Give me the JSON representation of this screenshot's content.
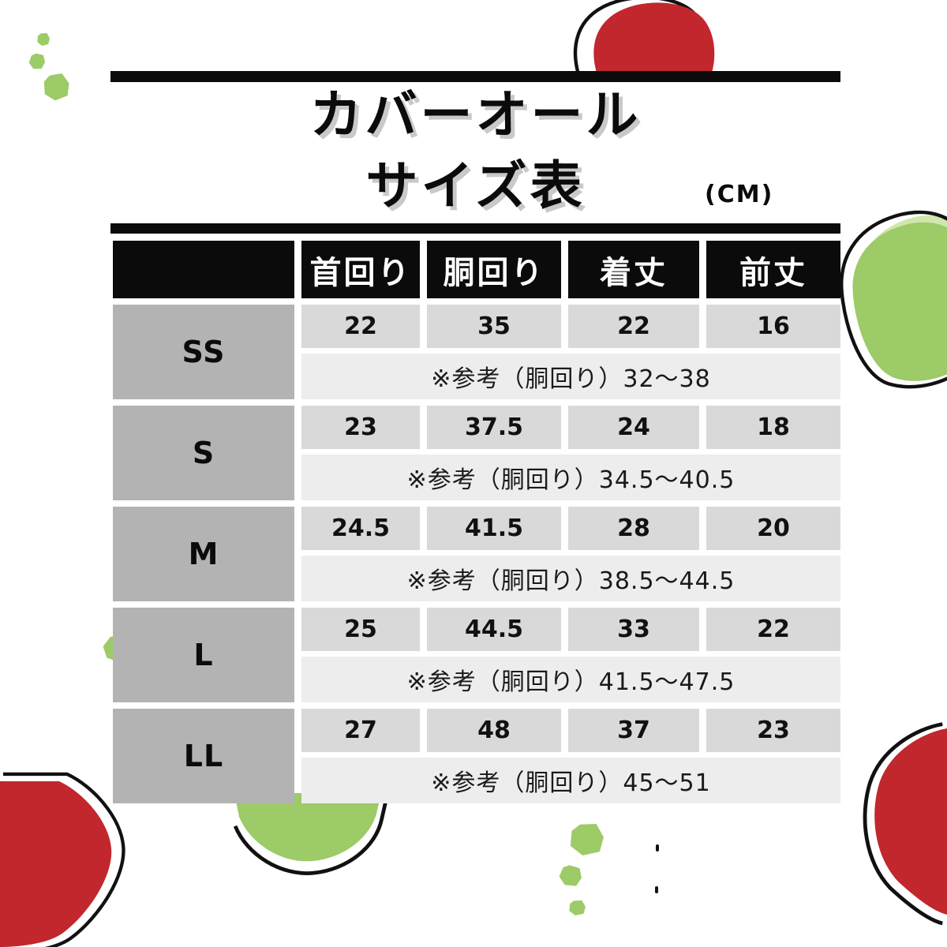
{
  "chart_data": {
    "type": "table",
    "title": "カバーオール サイズ表",
    "title_line1": "カバーオール",
    "title_line2": "サイズ表",
    "unit_label": "(CM)",
    "columns": [
      "首回り",
      "胴回り",
      "着丈",
      "前丈"
    ],
    "rows": [
      {
        "size": "SS",
        "values": [
          "22",
          "35",
          "22",
          "16"
        ],
        "note": "※参考（胴回り）32〜38"
      },
      {
        "size": "S",
        "values": [
          "23",
          "37.5",
          "24",
          "18"
        ],
        "note": "※参考（胴回り）34.5〜40.5"
      },
      {
        "size": "M",
        "values": [
          "24.5",
          "41.5",
          "28",
          "20"
        ],
        "note": "※参考（胴回り）38.5〜44.5"
      },
      {
        "size": "L",
        "values": [
          "25",
          "44.5",
          "33",
          "22"
        ],
        "note": "※参考（胴回り）41.5〜47.5"
      },
      {
        "size": "LL",
        "values": [
          "27",
          "48",
          "37",
          "23"
        ],
        "note": "※参考（胴回り）45〜51"
      }
    ]
  },
  "colors": {
    "accent_red": "#c1272d",
    "accent_green": "#9ccb68",
    "accent_green_light": "#cfe7ad",
    "outline_black": "#111111",
    "header_black": "#0b0b0b",
    "size_column_gray": "#b3b3b3",
    "value_cell_gray": "#d9d9d9",
    "note_cell_gray": "#ededed",
    "title_shadow_gray": "#c9c9c9"
  }
}
